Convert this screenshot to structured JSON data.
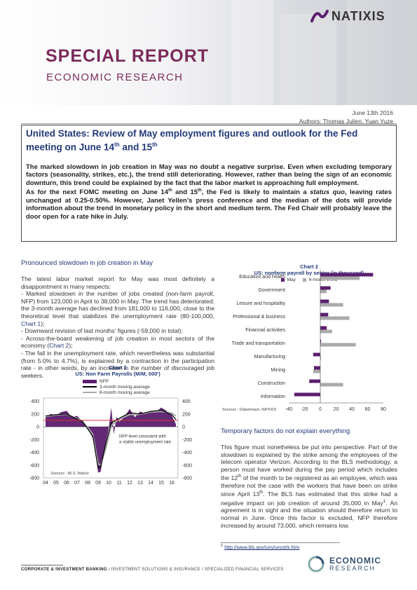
{
  "brand": {
    "name": "NATIXIS"
  },
  "header": {
    "title": "SPECIAL REPORT",
    "subtitle": "ECONOMIC RESEARCH"
  },
  "meta": {
    "date": "June 13th 2016",
    "authors": "Authors: Thomas Julien, Yuan Yuze"
  },
  "headline": {
    "pre": "United States: Review of May employment figures and outlook for the Fed meeting on June 14",
    "sup1": "th",
    "mid": " and 15",
    "sup2": "th"
  },
  "summary": {
    "p1": "The marked slowdown in job creation in May was no doubt a negative surprise. Even when excluding temporary factors (seasonality, strikes, etc.), the trend still deteriorating. However, rather than being the sign of an economic downturn, this trend could be explained by the fact that the labor market is approaching full employment.",
    "p2a": "As for the next FOMC meeting on June 14",
    "p2b": " and 15",
    "p2c": ", the Fed is likely to maintain a ",
    "p2d": "status quo",
    "p2e": ", leaving rates unchanged at 0.25-0.50%. However, Janet Yellen’s press conference and the median of the dots will provide information about the trend in monetary policy in the short and medium term. The Fed Chair will probably leave the door open for a rate hike in July.",
    "sup": "th"
  },
  "left": {
    "section_title": "Pronounced slowdown in job creation in May",
    "para1": "The latest labor market report for May was most definitely a disappointment in many respects:",
    "b1a": "- Marked slowdown in the number of jobs created (non-farm payroll, NFP) from 123,000 in April to 38,000 in May. The trend has deteriorated: the 3-month average has declined from 181,000 to 116,000, close to the theoretical level that stabilizes the unemployment rate (80-100,000, ",
    "b1ref": "Chart 1",
    "b1b": ");",
    "b2": "- Downward revision of last months’ figures (-59,000 in total);",
    "b3a": "- Across-the-board weakening of job creation in most sectors of the economy (",
    "b3ref": "Chart 2",
    "b3b": ");",
    "b4": "- The fall in the unemployment rate, which nevertheless was substantial (from 5.0% to 4.7%), is explained by a contraction in the participation rate - in other words, by an increase in the number of discouraged job seekers."
  },
  "right": {
    "section_title": "Temporary factors do not explain everything",
    "para_a": "This figure must nonetheless be put into perspective. Part of the slowdown is explained by the strike among the employees of the telecom operator Verizon. According to the BLS methodology, a person must have worked during the pay period which includes the 12",
    "sup_th": "th",
    "para_b": " of the month to be registered as an employee, which was therefore not the case with the workers that have been on strike since April 13",
    "para_c": ". The BLS has estimated that this strike had a negative impact on job creation of around 35,000 in May",
    "sup_1": "1",
    "para_d": ". An agreement is in sight and the situation should therefore return to normal in June. Once this factor is excluded, NFP therefore increased by around 73,000, which remains low."
  },
  "footnote": {
    "num": "1",
    "link": "http://www.bls.gov/ces/cesstrk.htm"
  },
  "footer": {
    "text_bold": "CORPORATE & INVESTMENT BANKING",
    "text_rest": " / INVESTMENT SOLUTIONS & INSURANCE / SPECIALIZED FINANCIAL SERVICES",
    "logo_top": "ECONOMIC",
    "logo_bottom": "RESEARCH"
  },
  "colors": {
    "accent": "#7a2a5a",
    "navy": "#233a7a",
    "purple": "#5b1e6e",
    "gray": "#aaaaaa",
    "red": "#e03030"
  },
  "chart_data": [
    {
      "type": "bar",
      "chart_label": "Chart 1",
      "title": "US: Non Farm Payrolls (M/M, 000')",
      "legend": [
        "NFP",
        "3-month moving average",
        "6-month moving average"
      ],
      "x_ticks": [
        "04",
        "05",
        "06",
        "07",
        "08",
        "09",
        "10",
        "11",
        "12",
        "13",
        "14",
        "15",
        "16"
      ],
      "y_ticks": [
        400,
        200,
        0,
        -200,
        -400,
        -600,
        -800
      ],
      "ylim": [
        -800,
        450
      ],
      "reference_level": 100,
      "annotation": "NFP level consistent with a stable unemployment rate",
      "source": "Sources : BLS, Natixis",
      "series": [
        {
          "name": "NFP",
          "x": [
            2004.0,
            2004.5,
            2005.0,
            2005.5,
            2006.0,
            2006.5,
            2007.0,
            2007.5,
            2008.0,
            2008.25,
            2008.5,
            2008.75,
            2009.0,
            2009.25,
            2009.5,
            2009.75,
            2010.0,
            2010.25,
            2010.5,
            2010.75,
            2011.0,
            2011.5,
            2012.0,
            2012.5,
            2013.0,
            2013.5,
            2014.0,
            2014.5,
            2015.0,
            2015.5,
            2016.0,
            2016.4
          ],
          "values": [
            150,
            200,
            180,
            230,
            250,
            150,
            170,
            90,
            -40,
            -100,
            -180,
            -400,
            -720,
            -700,
            -450,
            -220,
            -40,
            300,
            -120,
            160,
            80,
            150,
            280,
            150,
            240,
            200,
            240,
            230,
            300,
            250,
            180,
            40
          ]
        },
        {
          "name": "3-month moving average",
          "x": [
            2004.0,
            2005.0,
            2006.0,
            2007.0,
            2007.5,
            2008.0,
            2008.5,
            2009.0,
            2009.25,
            2009.75,
            2010.25,
            2011.0,
            2012.0,
            2013.0,
            2014.0,
            2015.0,
            2016.0,
            2016.4
          ],
          "values": [
            170,
            190,
            200,
            120,
            80,
            -30,
            -150,
            -650,
            -620,
            -250,
            60,
            130,
            220,
            200,
            240,
            260,
            190,
            116
          ]
        },
        {
          "name": "6-month moving average",
          "x": [
            2004.0,
            2005.0,
            2006.0,
            2007.0,
            2007.5,
            2008.0,
            2008.5,
            2009.0,
            2009.25,
            2009.75,
            2010.25,
            2011.0,
            2012.0,
            2013.0,
            2014.0,
            2015.0,
            2016.0,
            2016.4
          ],
          "values": [
            160,
            185,
            195,
            130,
            90,
            -10,
            -120,
            -580,
            -600,
            -330,
            20,
            120,
            190,
            195,
            230,
            240,
            215,
            170
          ]
        }
      ]
    },
    {
      "type": "bar",
      "chart_label": "Chart 2",
      "title": "US: nonfarm payroll by sector (in thousand)",
      "orientation": "horizontal",
      "categories": [
        "Education and health",
        "Government",
        "Leisure and hospitality",
        "Professional & business",
        "Financial activities",
        "Trade and transportation",
        "Manufacturing",
        "Mining",
        "Construction",
        "Information"
      ],
      "series": [
        {
          "name": "May",
          "values": [
            67,
            13,
            11,
            10,
            8,
            1,
            -9,
            -8,
            -14,
            -33
          ]
        },
        {
          "name": "6-month trend",
          "values": [
            50,
            8,
            29,
            37,
            15,
            45,
            1,
            -9,
            29,
            0
          ]
        }
      ],
      "x_ticks": [
        -40,
        -20,
        0,
        20,
        40,
        60,
        80
      ],
      "xlim": [
        -40,
        80
      ],
      "source": "Sources : Datastream, NATIXIS"
    }
  ]
}
